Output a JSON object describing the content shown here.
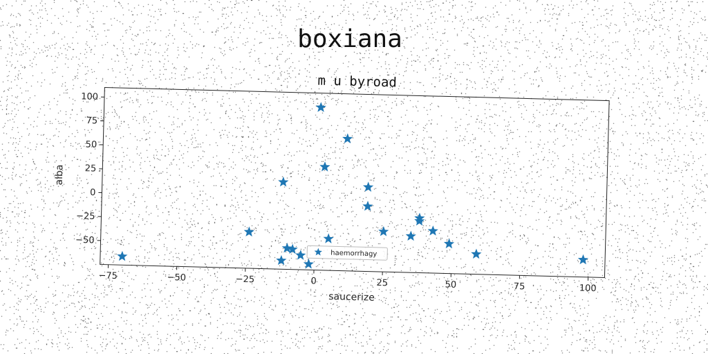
{
  "figure": {
    "suptitle": "boxiana"
  },
  "chart_data": {
    "type": "scatter",
    "title": "m u byroad",
    "xlabel": "saucerize",
    "ylabel": "alba",
    "xlim": [
      -78,
      106
    ],
    "ylim": [
      -75,
      110
    ],
    "xticks": [
      -75,
      -50,
      -25,
      0,
      25,
      50,
      75,
      100
    ],
    "yticks": [
      -50,
      -25,
      0,
      25,
      50,
      75,
      100
    ],
    "xtick_labels": [
      "−75",
      "−50",
      "−25",
      "0",
      "25",
      "50",
      "75",
      "100"
    ],
    "ytick_labels": [
      "−50",
      "−25",
      "0",
      "25",
      "50",
      "75",
      "100"
    ],
    "marker": "star",
    "grid": false,
    "legend": {
      "position": "lower center",
      "entries": [
        "haemorrhagy"
      ]
    },
    "series": [
      {
        "name": "haemorrhagy",
        "color": "#1f77b4",
        "points": [
          [
            -70,
            -66
          ],
          [
            -24,
            -37
          ],
          [
            -12,
            16
          ],
          [
            -12,
            -66
          ],
          [
            -10,
            -53
          ],
          [
            -8,
            -54
          ],
          [
            -5,
            -60
          ],
          [
            -2,
            -69
          ],
          [
            1,
            95
          ],
          [
            3,
            33
          ],
          [
            5,
            -42
          ],
          [
            11,
            63
          ],
          [
            19,
            13
          ],
          [
            19,
            -7
          ],
          [
            25,
            -33
          ],
          [
            35,
            -37
          ],
          [
            38,
            -18
          ],
          [
            38,
            -21
          ],
          [
            43,
            -31
          ],
          [
            49,
            -44
          ],
          [
            59,
            -54
          ],
          [
            98,
            -57
          ]
        ]
      }
    ]
  }
}
